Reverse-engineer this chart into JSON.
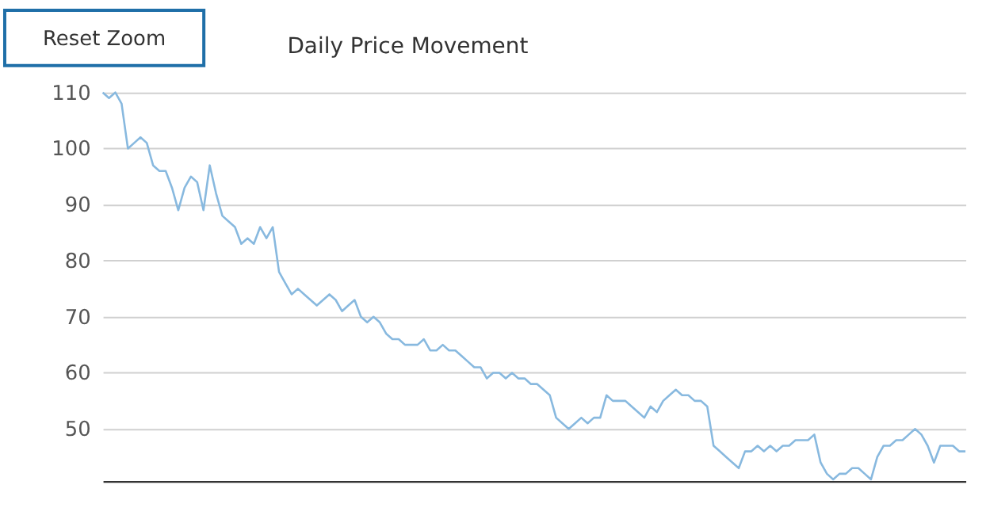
{
  "chart_data": {
    "type": "line",
    "title": "Daily Price Movement",
    "annotations": [
      "Reset Zoom"
    ],
    "categories": [
      null,
      null,
      null,
      null,
      null,
      null,
      null,
      null,
      null,
      null,
      null,
      null,
      null,
      null,
      null,
      null,
      null,
      null,
      null,
      null,
      null,
      null,
      null,
      null,
      null,
      null,
      null,
      null,
      null,
      null,
      null,
      null,
      null,
      null,
      null,
      null,
      null,
      null,
      null,
      null,
      null,
      null,
      null,
      null,
      null,
      null,
      null,
      null,
      null,
      null,
      null,
      null,
      null,
      null,
      null,
      null,
      null,
      null,
      null,
      null,
      null,
      null,
      null,
      null,
      null,
      null,
      null,
      null,
      null,
      null,
      null,
      null,
      null,
      null,
      null,
      null,
      null,
      null,
      null,
      null,
      null,
      null,
      null,
      null,
      null,
      null,
      null,
      null,
      null,
      null,
      null,
      null,
      null,
      null,
      null,
      null,
      null,
      null,
      null,
      null,
      null,
      null,
      null,
      null,
      null,
      null,
      null,
      null,
      null,
      null,
      null,
      null,
      null,
      null,
      null,
      null,
      null,
      null,
      null,
      null,
      null,
      null,
      null,
      null,
      null,
      null,
      null,
      null,
      null,
      null,
      null,
      null,
      null,
      null,
      null,
      null,
      null,
      null
    ],
    "series": [
      {
        "color": "#88b9df",
        "values": [
          110,
          109,
          110,
          108,
          100,
          101,
          102,
          101,
          97,
          96,
          96,
          93,
          89,
          93,
          95,
          94,
          89,
          97,
          92,
          88,
          87,
          86,
          83,
          84,
          83,
          86,
          84,
          86,
          78,
          76,
          74,
          75,
          74,
          73,
          72,
          73,
          74,
          73,
          71,
          72,
          73,
          70,
          69,
          70,
          69,
          67,
          66,
          66,
          65,
          65,
          65,
          66,
          64,
          64,
          65,
          64,
          64,
          63,
          62,
          61,
          61,
          59,
          60,
          60,
          59,
          60,
          59,
          59,
          58,
          58,
          57,
          56,
          52,
          51,
          50,
          51,
          52,
          51,
          52,
          52,
          56,
          55,
          55,
          55,
          54,
          53,
          52,
          54,
          53,
          55,
          56,
          57,
          56,
          56,
          55,
          55,
          54,
          47,
          46,
          45,
          44,
          43,
          46,
          46,
          47,
          46,
          47,
          46,
          47,
          47,
          48,
          48,
          48,
          49,
          44,
          42,
          41,
          42,
          42,
          43,
          43,
          42,
          41,
          45,
          47,
          47,
          48,
          48,
          49,
          50,
          49,
          47,
          44,
          47,
          47,
          47,
          46,
          46
        ]
      }
    ],
    "ylim": [
      40.7,
      110
    ],
    "yticks": [
      50,
      60,
      70,
      80,
      90,
      100,
      110
    ],
    "grid": "y",
    "tick_labels": "y",
    "line_style": "solid",
    "marker": "none"
  }
}
